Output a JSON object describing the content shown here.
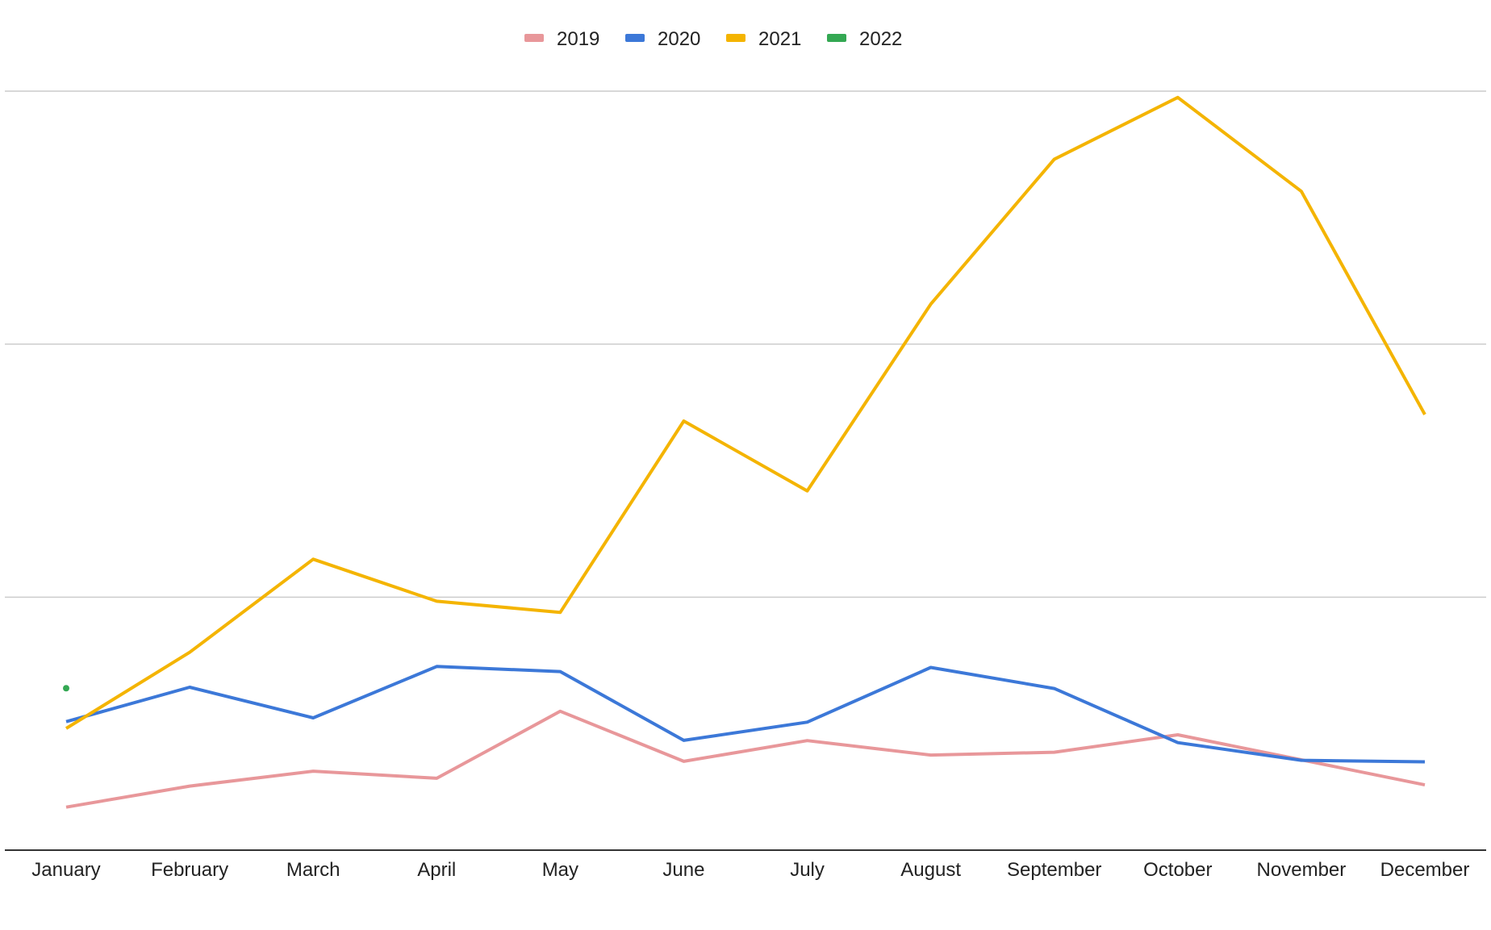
{
  "chart_data": {
    "type": "line",
    "title": "",
    "xlabel": "",
    "ylabel": "",
    "categories": [
      "January",
      "February",
      "March",
      "April",
      "May",
      "June",
      "July",
      "August",
      "September",
      "October",
      "November",
      "December"
    ],
    "ylim": [
      0,
      3
    ],
    "grid": true,
    "legend_position": "top",
    "series": [
      {
        "name": "2019",
        "color": "#E8979A",
        "values": [
          0.17,
          0.253,
          0.312,
          0.284,
          0.549,
          0.351,
          0.433,
          0.376,
          0.387,
          0.456,
          0.357,
          0.258
        ]
      },
      {
        "name": "2020",
        "color": "#3C78D8",
        "values": [
          0.508,
          0.644,
          0.523,
          0.726,
          0.706,
          0.434,
          0.506,
          0.722,
          0.639,
          0.425,
          0.355,
          0.349
        ]
      },
      {
        "name": "2021",
        "color": "#F4B400",
        "values": [
          0.481,
          0.782,
          1.15,
          0.984,
          0.94,
          1.696,
          1.42,
          2.158,
          2.731,
          2.975,
          2.604,
          1.722
        ]
      },
      {
        "name": "2022",
        "color": "#34A853",
        "values": [
          0.64,
          null,
          null,
          null,
          null,
          null,
          null,
          null,
          null,
          null,
          null,
          null
        ]
      }
    ]
  }
}
